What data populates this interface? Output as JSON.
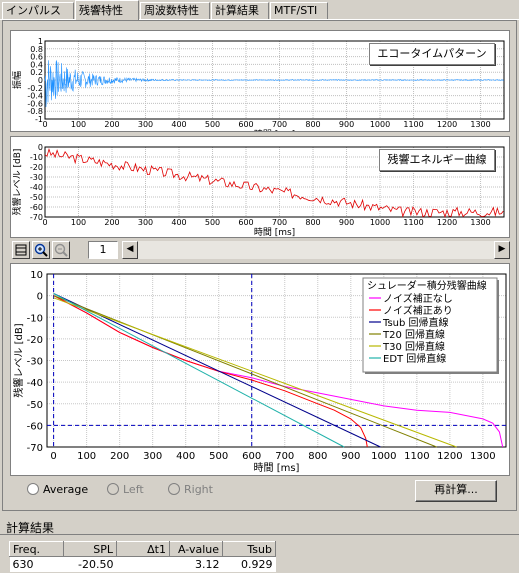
{
  "tabs": [
    "インパルス応答",
    "残響特性",
    "周波数特性",
    "計算結果",
    "MTF/STI"
  ],
  "active_tab": 1,
  "plot1": {
    "label": "エコータイムパターン",
    "ylabel": "振幅",
    "xlabel": "時間 [ms]",
    "yticks": [
      "1",
      "0.8",
      "0.6",
      "0.4",
      "0.2",
      "0",
      "-0.2",
      "-0.4",
      "-0.6",
      "-0.8",
      "-1"
    ],
    "xticks": [
      "0",
      "100",
      "200",
      "300",
      "400",
      "500",
      "600",
      "700",
      "800",
      "900",
      "1000",
      "1100",
      "1200",
      "1300"
    ]
  },
  "plot2": {
    "label": "残響エネルギー曲線",
    "ylabel": "残響レベル [dB]",
    "xlabel": "時間 [ms]",
    "yticks": [
      "0",
      "-10",
      "-20",
      "-30",
      "-40",
      "-50",
      "-60",
      "-70"
    ],
    "xticks": [
      "0",
      "100",
      "200",
      "300",
      "400",
      "500",
      "600",
      "700",
      "800",
      "900",
      "1000",
      "1100",
      "1200",
      "1300"
    ]
  },
  "toolbar": {
    "page": "1"
  },
  "chart_data": {
    "type": "line",
    "ylabel": "残響レベル [dB]",
    "xlabel": "時間 [ms]",
    "xlim": [
      -20,
      1370
    ],
    "ylim": [
      -70,
      10
    ],
    "xticks": [
      "0",
      "100",
      "200",
      "300",
      "400",
      "500",
      "600",
      "700",
      "800",
      "900",
      "1000",
      "1100",
      "1200",
      "1300"
    ],
    "yticks": [
      "10",
      "0",
      "-10",
      "-20",
      "-30",
      "-40",
      "-50",
      "-60",
      "-70"
    ],
    "legend_title": "シュレーダー積分残響曲線",
    "legend_position": "top-right",
    "markers": {
      "vlines": [
        0,
        600
      ],
      "hline": -60
    },
    "series": [
      {
        "name": "ノイズ補正なし",
        "color": "#ff00ff",
        "x": [
          0,
          100,
          200,
          300,
          400,
          500,
          600,
          700,
          800,
          900,
          1000,
          1100,
          1200,
          1300,
          1330,
          1350,
          1360
        ],
        "y": [
          0,
          -8,
          -17,
          -24,
          -30,
          -35,
          -38,
          -42,
          -45,
          -48,
          -51,
          -53,
          -54,
          -57,
          -59,
          -63,
          -70
        ]
      },
      {
        "name": "ノイズ補正あり",
        "color": "#ff0000",
        "x": [
          0,
          100,
          200,
          300,
          400,
          500,
          600,
          700,
          800,
          850,
          900,
          930,
          945,
          950
        ],
        "y": [
          0,
          -8,
          -17,
          -24,
          -30,
          -35,
          -39,
          -44,
          -50,
          -53,
          -57,
          -61,
          -66,
          -70
        ]
      },
      {
        "name": "Tsub 回帰直線",
        "color": "#00008b",
        "x": [
          0,
          990
        ],
        "y": [
          1,
          -70
        ]
      },
      {
        "name": "T20 回帰直線",
        "color": "#808000",
        "x": [
          0,
          1160
        ],
        "y": [
          0,
          -70
        ]
      },
      {
        "name": "T30 回帰直線",
        "color": "#b8b800",
        "x": [
          0,
          1220
        ],
        "y": [
          -1,
          -70
        ]
      },
      {
        "name": "EDT 回帰直線",
        "color": "#20b2aa",
        "x": [
          0,
          880
        ],
        "y": [
          1,
          -70
        ]
      }
    ]
  },
  "options": {
    "average": "Average",
    "left": "Left",
    "right": "Right",
    "recalc": "再計算..."
  },
  "results": {
    "title": "計算結果",
    "headers": [
      "Freq.",
      "SPL",
      "Δt1",
      "A-value",
      "Tsub"
    ],
    "row": [
      "630",
      "-20.50",
      "",
      "3.12",
      "0.929"
    ]
  }
}
